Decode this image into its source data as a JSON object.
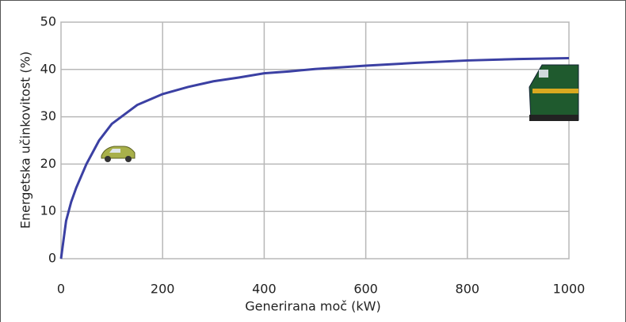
{
  "chart_data": {
    "type": "line",
    "x_label": "Generirana moč (kW)",
    "y_label": "Energetska učinkovitost (%)",
    "x": [
      0,
      5,
      10,
      20,
      30,
      50,
      75,
      100,
      150,
      200,
      250,
      300,
      350,
      400,
      450,
      500,
      600,
      700,
      800,
      900,
      1000
    ],
    "values": [
      0,
      4,
      8,
      12,
      15,
      20,
      25,
      28.5,
      32.5,
      34.8,
      36.3,
      37.5,
      38.3,
      39.2,
      39.6,
      40.1,
      40.8,
      41.4,
      41.9,
      42.2,
      42.4
    ],
    "color": "#3b40a3",
    "xlim": [
      0,
      1000
    ],
    "xticks": [
      0,
      200,
      400,
      600,
      800,
      1000
    ],
    "ylim": [
      0,
      50
    ],
    "yticks": [
      0,
      10,
      20,
      30,
      40,
      50
    ],
    "grid": true
  }
}
